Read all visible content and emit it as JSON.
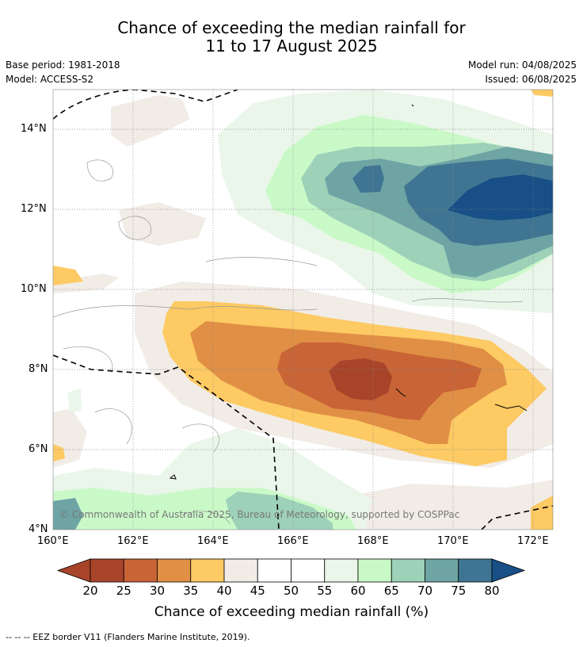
{
  "title_line1": "Chance of exceeding the median rainfall for",
  "title_line2": "11 to 17 August 2025",
  "base_period": "Base period: 1981-2018",
  "model": "Model: ACCESS-S2",
  "model_run": "Model run: 04/08/2025",
  "issued": "Issued: 06/08/2025",
  "copyright": "© Commonwealth of Australia 2025, Bureau of Meteorology, supported by COSPPac",
  "lat_ticks": [
    "14°N",
    "12°N",
    "10°N",
    "8°N",
    "6°N",
    "4°N"
  ],
  "lon_ticks": [
    "160°E",
    "162°E",
    "164°E",
    "166°E",
    "168°E",
    "170°E",
    "172°E"
  ],
  "colorbar": {
    "ticks": [
      "20",
      "25",
      "30",
      "35",
      "40",
      "45",
      "50",
      "55",
      "60",
      "65",
      "70",
      "75",
      "80"
    ],
    "colors": [
      "#a8442a",
      "#c96436",
      "#e08f45",
      "#fdca63",
      "#f1ece6",
      "#ffffff",
      "#ffffff",
      "#eaf6ea",
      "#caf9c8",
      "#9dd1b8",
      "#6ea4a4",
      "#3f7592",
      "#174f86"
    ],
    "title": "Chance of exceeding median rainfall (%)"
  },
  "footer": "--  --  -- EEZ border V11 (Flanders Marine Institute, 2019)."
}
